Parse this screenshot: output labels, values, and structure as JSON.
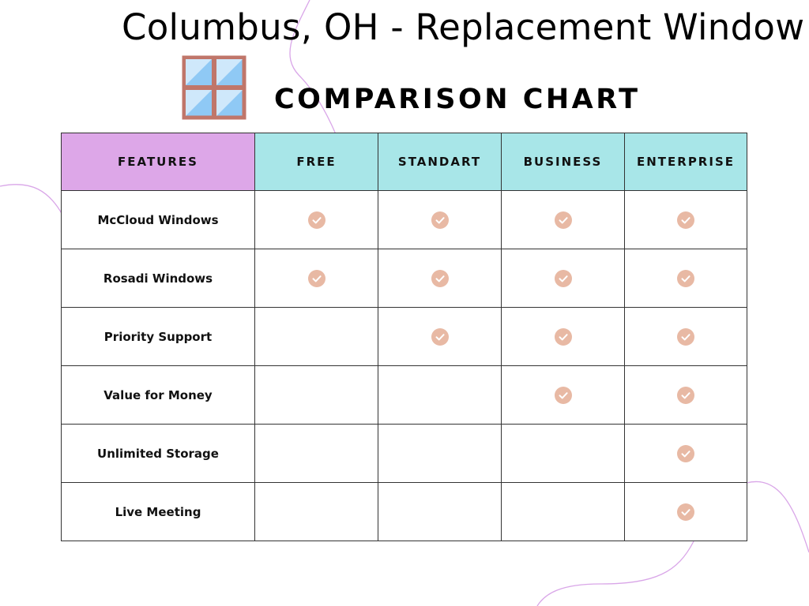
{
  "header": {
    "title": "Columbus, OH - Replacement Window",
    "subtitle": "COMPARISON CHART"
  },
  "colors": {
    "features_header_bg": "#dda7e8",
    "plan_header_bg": "#a8e6e8",
    "check_fill": "#e8b9a4",
    "window_frame": "#c0766a",
    "window_glass": "#8fc9f5",
    "decor_line": "#d9a6e8"
  },
  "table": {
    "columns": [
      "FEATURES",
      "FREE",
      "STANDART",
      "BUSINESS",
      "ENTERPRISE"
    ],
    "rows": [
      {
        "feature": "McCloud Windows",
        "checks": [
          true,
          true,
          true,
          true
        ]
      },
      {
        "feature": "Rosadi Windows",
        "checks": [
          true,
          true,
          true,
          true
        ]
      },
      {
        "feature": "Priority Support",
        "checks": [
          false,
          true,
          true,
          true
        ]
      },
      {
        "feature": "Value for Money",
        "checks": [
          false,
          false,
          true,
          true
        ]
      },
      {
        "feature": "Unlimited Storage",
        "checks": [
          false,
          false,
          false,
          true
        ]
      },
      {
        "feature": "Live Meeting",
        "checks": [
          false,
          false,
          false,
          true
        ]
      }
    ]
  }
}
